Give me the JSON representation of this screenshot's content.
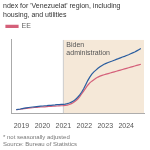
{
  "chart_data": {
    "type": "line",
    "title": "ndex for 'Venezuelat' region, including housing, and utilities",
    "x": [
      2018.75,
      2018.8475,
      2018.9451,
      2019.0426,
      2019.1402,
      2019.2377,
      2019.3352,
      2019.4328,
      2019.5303,
      2019.6279,
      2019.7254,
      2019.823,
      2019.9205,
      2020.018,
      2020.1156,
      2020.2131,
      2020.3107,
      2020.4082,
      2020.5057,
      2020.6033,
      2020.7008,
      2020.7984,
      2020.8959,
      2020.9934,
      2021.091,
      2021.1885,
      2021.2861,
      2021.3836,
      2021.4811,
      2021.5787,
      2021.6762,
      2021.7738,
      2021.8713,
      2021.9689,
      2022.0664,
      2022.1639,
      2022.2615,
      2022.359,
      2022.4566,
      2022.5541,
      2022.6516,
      2022.7492,
      2022.8467,
      2022.9443,
      2023.0418,
      2023.1393,
      2023.2369,
      2023.3344,
      2023.432,
      2023.5295,
      2023.627,
      2023.7246,
      2023.8221,
      2023.9197,
      2024.0172,
      2024.1148,
      2024.2123,
      2024.3098,
      2024.4074,
      2024.5049,
      2024.6025,
      2024.7
    ],
    "series": [
      {
        "color": "#2a5d9f",
        "values": [
          100.0,
          100.3,
          100.6,
          101.0,
          101.3,
          101.6,
          101.9,
          102.1,
          102.3,
          102.5,
          102.7,
          102.9,
          103.1,
          103.2,
          103.4,
          103.5,
          103.7,
          103.8,
          104.0,
          104.1,
          104.3,
          104.4,
          104.5,
          104.6,
          104.8,
          105.2,
          105.8,
          106.5,
          107.5,
          108.8,
          110.5,
          112.5,
          115.0,
          118.0,
          121.5,
          125.0,
          128.0,
          130.5,
          132.5,
          134.0,
          135.5,
          136.8,
          138.0,
          139.0,
          139.8,
          140.5,
          141.2,
          141.8,
          142.5,
          143.2,
          143.8,
          144.5,
          145.2,
          145.8,
          146.5,
          147.2,
          148.0,
          148.8,
          149.5,
          150.5,
          151.5,
          152.5
        ]
      },
      {
        "name": "EE",
        "color": "#d4607a",
        "values": [
          100.0,
          100.2,
          100.4,
          100.7,
          101.0,
          101.2,
          101.4,
          101.6,
          101.7,
          101.9,
          102.0,
          102.2,
          102.3,
          102.4,
          102.5,
          102.7,
          102.8,
          102.9,
          103.0,
          103.1,
          103.2,
          103.3,
          103.4,
          103.5,
          103.7,
          104.0,
          104.5,
          105.2,
          106.2,
          107.5,
          109.0,
          111.0,
          113.5,
          116.0,
          118.5,
          121.0,
          123.0,
          124.5,
          125.8,
          127.0,
          128.0,
          128.8,
          129.5,
          130.0,
          130.5,
          131.0,
          131.5,
          132.0,
          132.5,
          133.0,
          133.5,
          134.0,
          134.5,
          135.0,
          135.5,
          136.0,
          136.5,
          137.0,
          137.5,
          138.0,
          138.5,
          139.0
        ]
      }
    ],
    "xlim": [
      2018.5,
      2024.85
    ],
    "xticks": [
      2019,
      2020,
      2021,
      2022,
      2023,
      2024
    ],
    "ylim": [
      97,
      160
    ],
    "yticks": [],
    "grid": false,
    "legend": "top",
    "tick_labels": "x",
    "annotations": [
      "Biden\nadministration"
    ],
    "shaded_region": [
      2021.0,
      2024.85
    ],
    "shade_color": "#f5e8d8",
    "footer": [
      "* not seasonally adjusted",
      "Source: Bureau of Statistics"
    ]
  }
}
